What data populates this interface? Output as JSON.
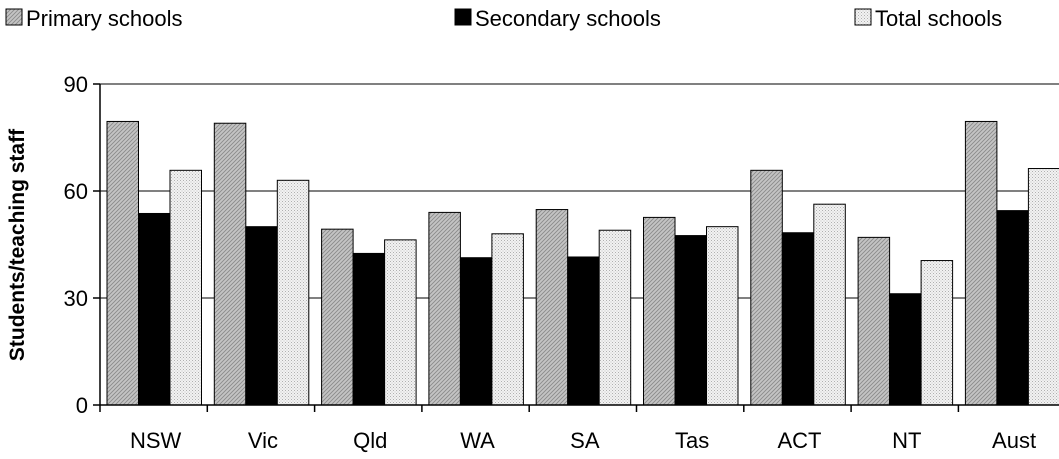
{
  "chart_data": {
    "type": "bar",
    "ylabel": "Students/teaching staff",
    "xlabel": "",
    "ylim": [
      0,
      90
    ],
    "yticks": [
      0,
      30,
      60,
      90
    ],
    "grid": true,
    "legend_position": "top",
    "categories": [
      "NSW",
      "Vic",
      "Qld",
      "WA",
      "SA",
      "Tas",
      "ACT",
      "NT",
      "Aust"
    ],
    "series": [
      {
        "name": "Primary schools",
        "pattern": "diagonal-hatch-light-gray",
        "color": "#c8c8c8",
        "values": [
          79.5,
          79.0,
          49.3,
          54.0,
          54.8,
          52.6,
          65.8,
          47.0,
          79.5
        ]
      },
      {
        "name": "Secondary schools",
        "pattern": "solid-black",
        "color": "#000000",
        "values": [
          53.7,
          50.0,
          42.5,
          41.3,
          41.5,
          47.5,
          48.3,
          31.2,
          54.5
        ]
      },
      {
        "name": "Total schools",
        "pattern": "light-dotted",
        "color": "#ececec",
        "values": [
          65.8,
          63.0,
          46.3,
          48.0,
          49.0,
          50.0,
          56.3,
          40.5,
          66.3
        ]
      }
    ]
  }
}
